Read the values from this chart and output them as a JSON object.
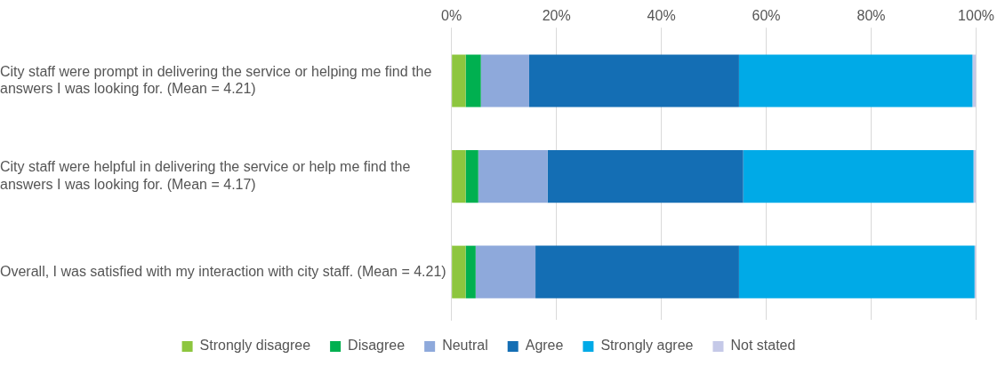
{
  "chart_data": {
    "type": "bar",
    "orientation": "horizontal",
    "stacked": true,
    "categories": [
      "City staff were prompt in delivering the service or helping me find the answers I was looking for. (Mean = 4.21)",
      "City staff were helpful in delivering the service or help me find the answers I was looking for. (Mean = 4.17)",
      "Overall, I was satisfied with my interaction with city staff. (Mean = 4.21)"
    ],
    "series": [
      {
        "name": "Strongly disagree",
        "color": "#8dc63f",
        "values": [
          2.7,
          2.7,
          2.7
        ]
      },
      {
        "name": "Disagree",
        "color": "#00b050",
        "values": [
          2.9,
          2.4,
          1.9
        ]
      },
      {
        "name": "Neutral",
        "color": "#8ea9db",
        "values": [
          9.2,
          13.2,
          11.4
        ]
      },
      {
        "name": "Agree",
        "color": "#146eb4",
        "values": [
          40.0,
          37.3,
          38.8
        ]
      },
      {
        "name": "Strongly agree",
        "color": "#00aae7",
        "values": [
          44.5,
          43.9,
          44.9
        ]
      },
      {
        "name": "Not stated",
        "color": "#c5c9e8",
        "values": [
          0.7,
          0.5,
          0.3
        ]
      }
    ],
    "xlim": [
      0,
      100
    ],
    "xticks": [
      {
        "value": 0,
        "label": "0%"
      },
      {
        "value": 20,
        "label": "20%"
      },
      {
        "value": 40,
        "label": "40%"
      },
      {
        "value": 60,
        "label": "60%"
      },
      {
        "value": 80,
        "label": "80%"
      },
      {
        "value": 100,
        "label": "100%"
      }
    ],
    "grid": "x",
    "legend": "bottom"
  }
}
